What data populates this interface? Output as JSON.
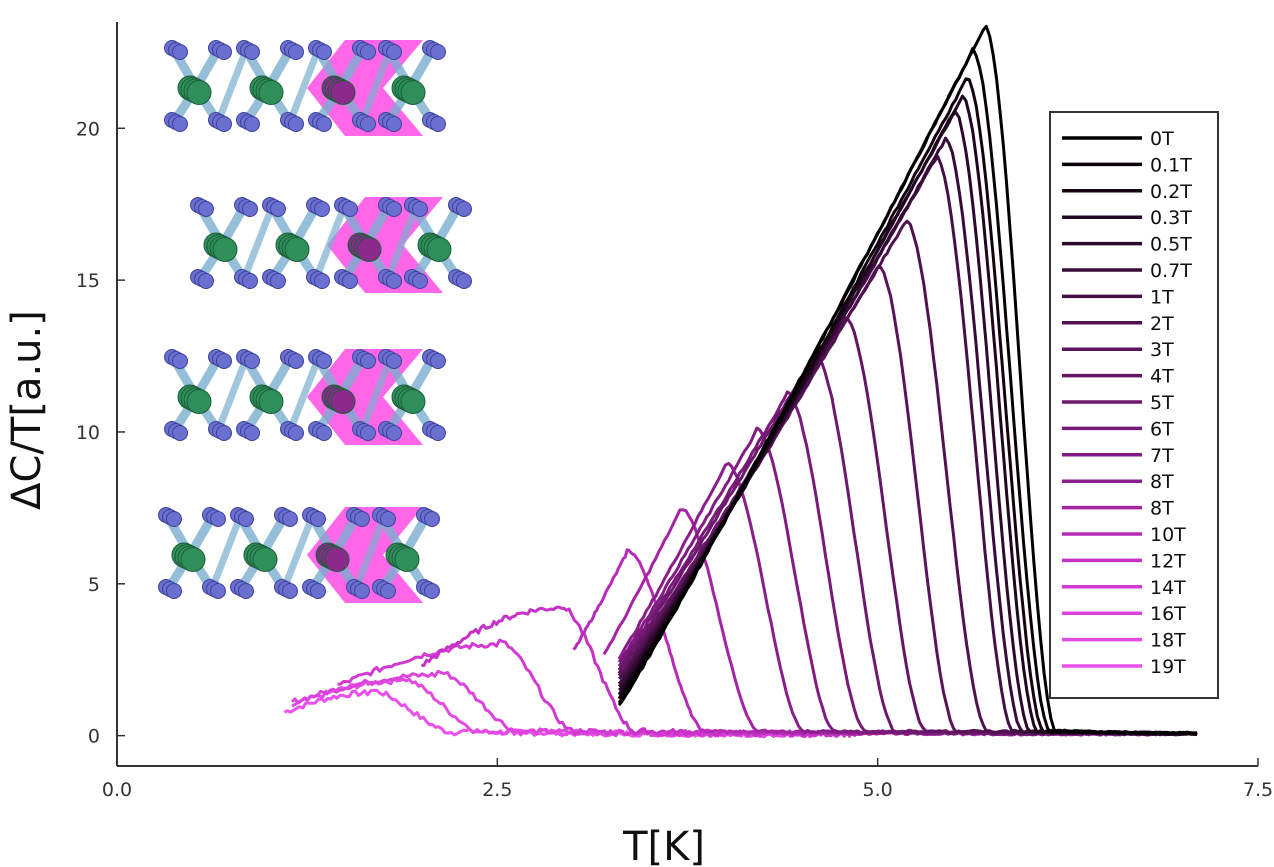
{
  "chart_data": {
    "type": "line",
    "xlabel": "T[K]",
    "ylabel": "ΔC/T[a.u.]",
    "xlim": [
      0,
      7.5
    ],
    "ylim": [
      -1,
      23.5
    ],
    "xticks": [
      0,
      2.5,
      5,
      7.5
    ],
    "xtick_labels": [
      "0.0",
      "2.5",
      "5.0",
      "7.5"
    ],
    "yticks": [
      0,
      5,
      10,
      15,
      20
    ],
    "ytick_labels": [
      "0",
      "5",
      "10",
      "15",
      "20"
    ],
    "grid": false,
    "legend_position": "right",
    "inset": "crystal structure illustrations (four stacked layered lattices with highlighted chevron planes)",
    "series": [
      {
        "name": "0T",
        "color": "#000000",
        "tc": 5.9,
        "peak_t": 5.7,
        "peak": 23.3,
        "t_start": 3.3,
        "t_end": 7.1
      },
      {
        "name": "0.1T",
        "color": "#0a0208",
        "tc": 5.86,
        "peak_t": 5.62,
        "peak": 22.5,
        "t_start": 3.3,
        "t_end": 7.1
      },
      {
        "name": "0.2T",
        "color": "#140410",
        "tc": 5.82,
        "peak_t": 5.58,
        "peak": 21.6,
        "t_start": 3.3,
        "t_end": 7.1
      },
      {
        "name": "0.3T",
        "color": "#200620",
        "tc": 5.78,
        "peak_t": 5.55,
        "peak": 21.0,
        "t_start": 3.3,
        "t_end": 7.1
      },
      {
        "name": "0.5T",
        "color": "#2c0a2c",
        "tc": 5.73,
        "peak_t": 5.5,
        "peak": 20.5,
        "t_start": 3.3,
        "t_end": 7.1
      },
      {
        "name": "0.7T",
        "color": "#380c38",
        "tc": 5.68,
        "peak_t": 5.44,
        "peak": 19.6,
        "t_start": 3.3,
        "t_end": 7.1
      },
      {
        "name": "1T",
        "color": "#451045",
        "tc": 5.62,
        "peak_t": 5.38,
        "peak": 19.0,
        "t_start": 3.3,
        "t_end": 7.05
      },
      {
        "name": "2T",
        "color": "#501250",
        "tc": 5.45,
        "peak_t": 5.18,
        "peak": 16.9,
        "t_start": 3.3,
        "t_end": 7.0
      },
      {
        "name": "3T",
        "color": "#5a145a",
        "tc": 5.25,
        "peak_t": 5.0,
        "peak": 15.4,
        "t_start": 3.3,
        "t_end": 7.0
      },
      {
        "name": "4T",
        "color": "#641664",
        "tc": 5.05,
        "peak_t": 4.78,
        "peak": 13.7,
        "t_start": 3.3,
        "t_end": 6.95
      },
      {
        "name": "5T",
        "color": "#6e186e",
        "tc": 4.85,
        "peak_t": 4.58,
        "peak": 12.5,
        "t_start": 3.3,
        "t_end": 6.9
      },
      {
        "name": "6T",
        "color": "#781a78",
        "tc": 4.65,
        "peak_t": 4.4,
        "peak": 11.2,
        "t_start": 3.3,
        "t_end": 6.85
      },
      {
        "name": "7T",
        "color": "#821c82",
        "tc": 4.45,
        "peak_t": 4.2,
        "peak": 10.0,
        "t_start": 3.3,
        "t_end": 6.8
      },
      {
        "name": "8T",
        "color": "#8c1e8c",
        "tc": 4.25,
        "peak_t": 4.0,
        "peak": 8.9,
        "t_start": 3.3,
        "t_end": 6.7
      },
      {
        "name": "8T",
        "color": "#a424a4",
        "tc": 3.95,
        "peak_t": 3.7,
        "peak": 7.4,
        "t_start": 3.2,
        "t_end": 6.6
      },
      {
        "name": "10T",
        "color": "#b82ab8",
        "tc": 3.6,
        "peak_t": 3.35,
        "peak": 6.0,
        "t_start": 3.0,
        "t_end": 5.0
      },
      {
        "name": "12T",
        "color": "#c632c6",
        "tc": 3.15,
        "peak_t": 2.9,
        "peak": 4.2,
        "t_start": 2.0,
        "t_end": 4.9
      },
      {
        "name": "14T",
        "color": "#d23ad2",
        "tc": 2.75,
        "peak_t": 2.5,
        "peak": 3.0,
        "t_start": 1.45,
        "t_end": 4.8
      },
      {
        "name": "16T",
        "color": "#dc42dc",
        "tc": 2.4,
        "peak_t": 2.1,
        "peak": 2.0,
        "t_start": 1.15,
        "t_end": 4.7
      },
      {
        "name": "18T",
        "color": "#e44ae4",
        "tc": 2.15,
        "peak_t": 1.85,
        "peak": 1.8,
        "t_start": 1.15,
        "t_end": 4.6
      },
      {
        "name": "19T",
        "color": "#ec50ec",
        "tc": 1.95,
        "peak_t": 1.65,
        "peak": 1.4,
        "t_start": 1.1,
        "t_end": 4.55
      }
    ]
  },
  "colors": {
    "axis": "#333333",
    "atom_green": "#2e8f5a",
    "atom_blue": "#6a6fd0",
    "bond": "#7aaed0",
    "highlight": "#ff2ddf"
  }
}
